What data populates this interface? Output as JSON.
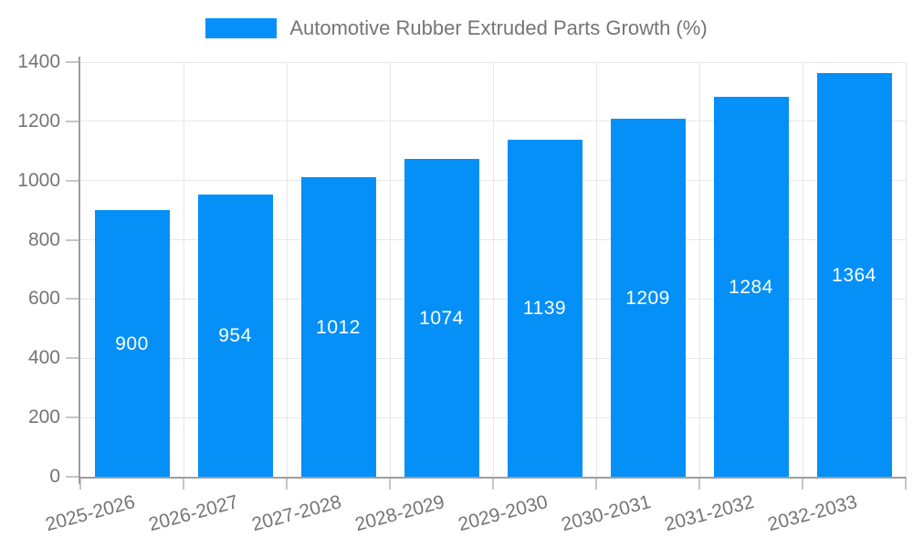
{
  "chart_data": {
    "type": "bar",
    "title": "Automotive Rubber Extruded Parts Growth (%)",
    "categories": [
      "2025-2026",
      "2026-2027",
      "2027-2028",
      "2028-2029",
      "2029-2030",
      "2030-2031",
      "2031-2032",
      "2032-2033"
    ],
    "series": [
      {
        "name": "Automotive Rubber Extruded Parts Growth (%)",
        "values": [
          900,
          954,
          1012,
          1074,
          1139,
          1209,
          1284,
          1364
        ]
      }
    ],
    "value_labels": [
      "900",
      "954",
      "1012",
      "1074",
      "1139",
      "1209",
      "1284",
      "1364"
    ],
    "xlabel": "",
    "ylabel": "",
    "ylim": [
      0,
      1400
    ],
    "yticks": [
      0,
      200,
      400,
      600,
      800,
      1000,
      1200,
      1400
    ],
    "grid": true,
    "legend_position": "top-center",
    "x_label_rotation_deg": -15,
    "colors": {
      "bar_fill": "#0590f8",
      "bar_border": "rgba(5, 144, 248, 0.45)",
      "value_label": "#ffffff",
      "axis_line": "#9e9e9e",
      "tick_mark": "#c6c6c6",
      "gridline": "#e7e7e7",
      "axis_text": "#757575",
      "background": "#ffffff"
    }
  }
}
